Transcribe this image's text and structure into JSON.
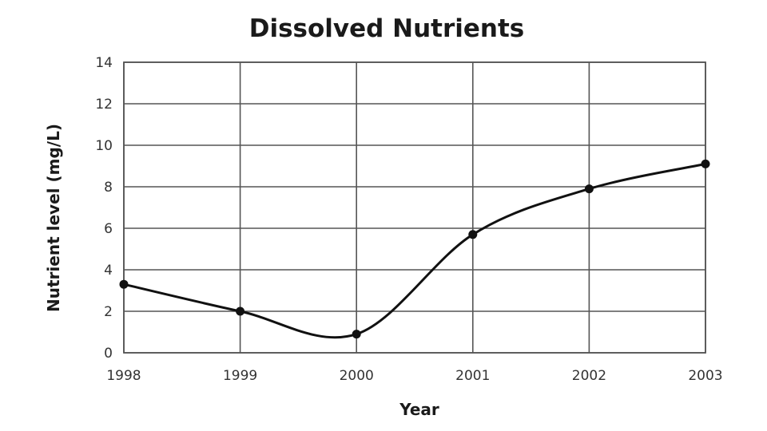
{
  "chart_data": {
    "type": "line",
    "title": "Dissolved Nutrients",
    "xlabel": "Year",
    "ylabel": "Nutrient level (mg/L)",
    "x": [
      1998,
      1999,
      2000,
      2001,
      2002,
      2003
    ],
    "x_tick_labels": [
      "1998",
      "1999",
      "2000",
      "2001",
      "2002",
      "2003"
    ],
    "y_ticks": [
      0,
      2,
      4,
      6,
      8,
      10,
      12,
      14
    ],
    "y_tick_labels": [
      "0",
      "2",
      "4",
      "6",
      "8",
      "10",
      "12",
      "14"
    ],
    "ylim": [
      0,
      14
    ],
    "xlim": [
      1998,
      2003
    ],
    "grid": true,
    "series": [
      {
        "values": [
          3.3,
          2.0,
          0.9,
          5.7,
          7.9,
          9.1
        ],
        "color": "#111111"
      }
    ]
  }
}
